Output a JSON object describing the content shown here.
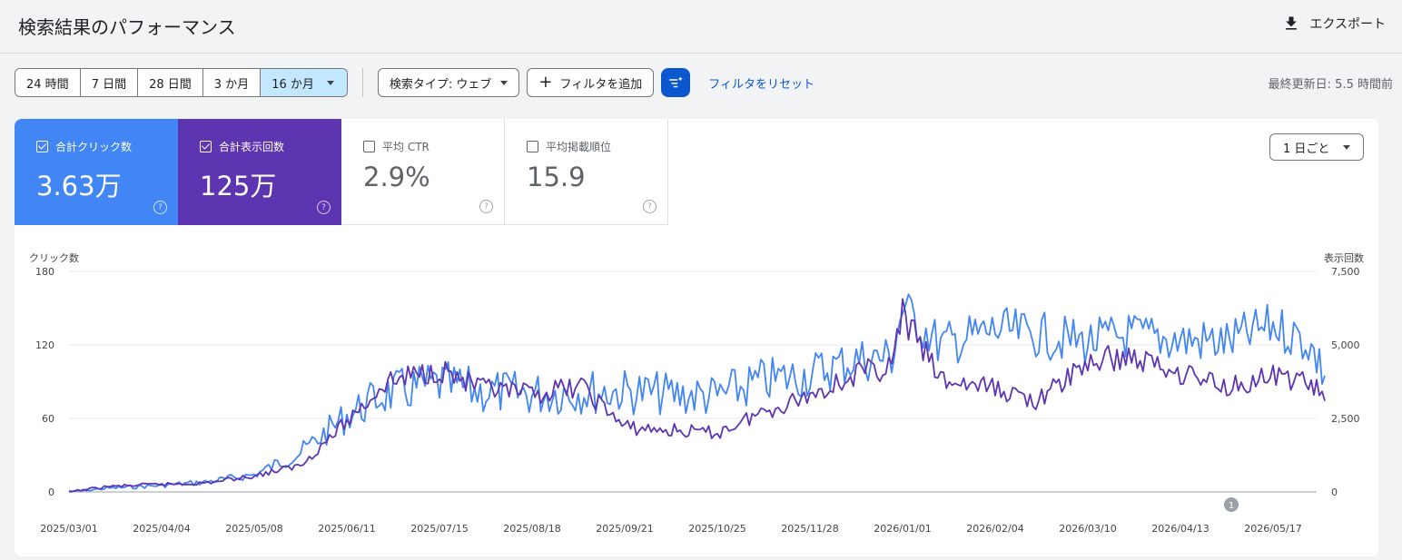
{
  "header": {
    "title": "検索結果のパフォーマンス",
    "export_label": "エクスポート",
    "export_icon": "download-icon"
  },
  "toolbar": {
    "ranges": [
      "24 時間",
      "7 日間",
      "28 日間",
      "3 か月",
      "16 か月"
    ],
    "active_range": "16 か月",
    "search_type": "検索タイプ: ウェブ",
    "add_filter": "フィルタを追加",
    "reset_filter": "フィルタをリセット",
    "last_updated": "最終更新日: 5.5 時間前"
  },
  "metrics": [
    {
      "label": "合計クリック数",
      "value": "3.63万",
      "checked": true,
      "color": "#4285f4"
    },
    {
      "label": "合計表示回数",
      "value": "125万",
      "checked": true,
      "color": "#5e35b1"
    },
    {
      "label": "平均 CTR",
      "value": "2.9%",
      "checked": false
    },
    {
      "label": "平均掲載順位",
      "value": "15.9",
      "checked": false
    }
  ],
  "granularity": "1 日ごと",
  "chart_data": {
    "type": "line",
    "x_ticks": [
      "2025/03/01",
      "2025/04/04",
      "2025/05/08",
      "2025/06/11",
      "2025/07/15",
      "2025/08/18",
      "2025/09/21",
      "2025/10/25",
      "2025/11/28",
      "2026/01/01",
      "2026/02/04",
      "2026/03/10",
      "2026/04/13",
      "2026/05/17"
    ],
    "left_axis": {
      "label": "クリック数",
      "ticks": [
        "0",
        "60",
        "120",
        "180"
      ],
      "range": [
        0,
        180
      ]
    },
    "right_axis": {
      "label": "表示回数",
      "ticks": [
        "0",
        "2,500",
        "5,000",
        "7,500"
      ],
      "range": [
        0,
        7500
      ]
    },
    "annotation": {
      "label": "1",
      "date": "2026/04/13"
    },
    "series": [
      {
        "name": "合計クリック数",
        "axis": "left",
        "color": "#4285f4",
        "x": [
          "2025/03/01",
          "2025/03/15",
          "2025/04/01",
          "2025/04/20",
          "2025/05/08",
          "2025/05/25",
          "2025/06/11",
          "2025/06/25",
          "2025/07/15",
          "2025/07/30",
          "2025/08/18",
          "2025/09/05",
          "2025/09/21",
          "2025/10/05",
          "2025/10/25",
          "2025/11/10",
          "2025/11/28",
          "2025/12/15",
          "2025/12/28",
          "2026/01/01",
          "2026/01/15",
          "2026/02/04",
          "2026/02/20",
          "2026/03/10",
          "2026/03/25",
          "2026/04/13",
          "2026/04/30",
          "2026/05/17",
          "2026/05/30",
          "2026/06/05"
        ],
        "values": [
          0,
          3,
          5,
          8,
          14,
          32,
          62,
          80,
          88,
          82,
          80,
          82,
          82,
          80,
          78,
          90,
          96,
          108,
          110,
          150,
          120,
          132,
          128,
          122,
          128,
          124,
          122,
          136,
          122,
          95
        ]
      },
      {
        "name": "合計表示回数",
        "axis": "right",
        "color": "#5e35b1",
        "x": [
          "2025/03/01",
          "2025/03/15",
          "2025/04/01",
          "2025/04/20",
          "2025/05/08",
          "2025/05/25",
          "2025/06/11",
          "2025/06/25",
          "2025/07/15",
          "2025/07/30",
          "2025/08/18",
          "2025/09/05",
          "2025/09/21",
          "2025/10/05",
          "2025/10/25",
          "2025/11/10",
          "2025/11/28",
          "2025/12/15",
          "2025/12/28",
          "2026/01/01",
          "2026/01/15",
          "2026/02/04",
          "2026/02/20",
          "2026/03/10",
          "2026/03/25",
          "2026/04/13",
          "2026/04/30",
          "2026/05/17",
          "2026/05/30",
          "2026/06/05"
        ],
        "values": [
          0,
          180,
          250,
          300,
          550,
          900,
          2400,
          3700,
          4200,
          3500,
          3300,
          3600,
          2200,
          2100,
          2000,
          2700,
          3300,
          4000,
          4300,
          6000,
          3800,
          3500,
          3100,
          4400,
          4600,
          4100,
          3600,
          3900,
          3800,
          3100
        ]
      }
    ]
  }
}
